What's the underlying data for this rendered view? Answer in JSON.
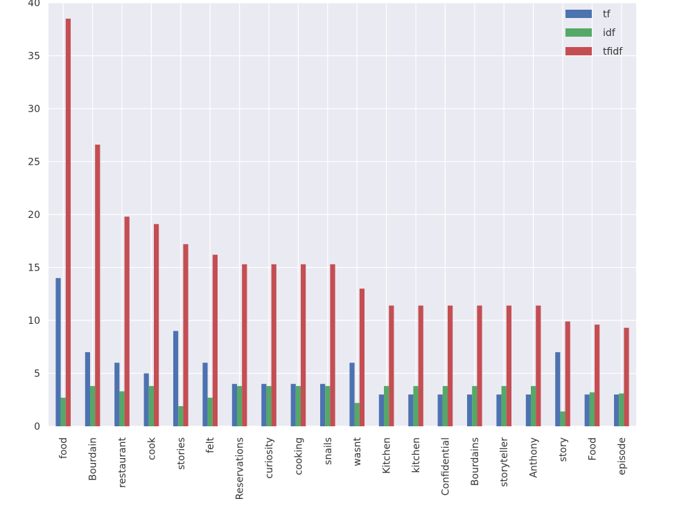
{
  "chart_data": {
    "type": "bar",
    "title": "",
    "xlabel": "",
    "ylabel": "",
    "ylim": [
      0,
      40
    ],
    "yticks": [
      0,
      5,
      10,
      15,
      20,
      25,
      30,
      35,
      40
    ],
    "grid": true,
    "legend_position": "top-right",
    "categories": [
      "food",
      "Bourdain",
      "restaurant",
      "cook",
      "stories",
      "felt",
      "Reservations",
      "curiosity",
      "cooking",
      "snails",
      "wasnt",
      "Kitchen",
      "kitchen",
      "Confidential",
      "Bourdains",
      "storyteller",
      "Anthony",
      "story",
      "Food",
      "episode"
    ],
    "series": [
      {
        "name": "tf",
        "color": "#4c72b0",
        "values": [
          14,
          7,
          6,
          5,
          9,
          6,
          4,
          4,
          4,
          4,
          6,
          3,
          3,
          3,
          3,
          3,
          3,
          7,
          3,
          3
        ]
      },
      {
        "name": "idf",
        "color": "#55a868",
        "values": [
          2.7,
          3.8,
          3.3,
          3.8,
          1.9,
          2.7,
          3.8,
          3.8,
          3.8,
          3.8,
          2.2,
          3.8,
          3.8,
          3.8,
          3.8,
          3.8,
          3.8,
          1.4,
          3.2,
          3.1
        ]
      },
      {
        "name": "tfidf",
        "color": "#c44e52",
        "values": [
          38.5,
          26.6,
          19.8,
          19.1,
          17.2,
          16.2,
          15.3,
          15.3,
          15.3,
          15.3,
          13.0,
          11.4,
          11.4,
          11.4,
          11.4,
          11.4,
          11.4,
          9.9,
          9.6,
          9.3
        ]
      }
    ]
  }
}
